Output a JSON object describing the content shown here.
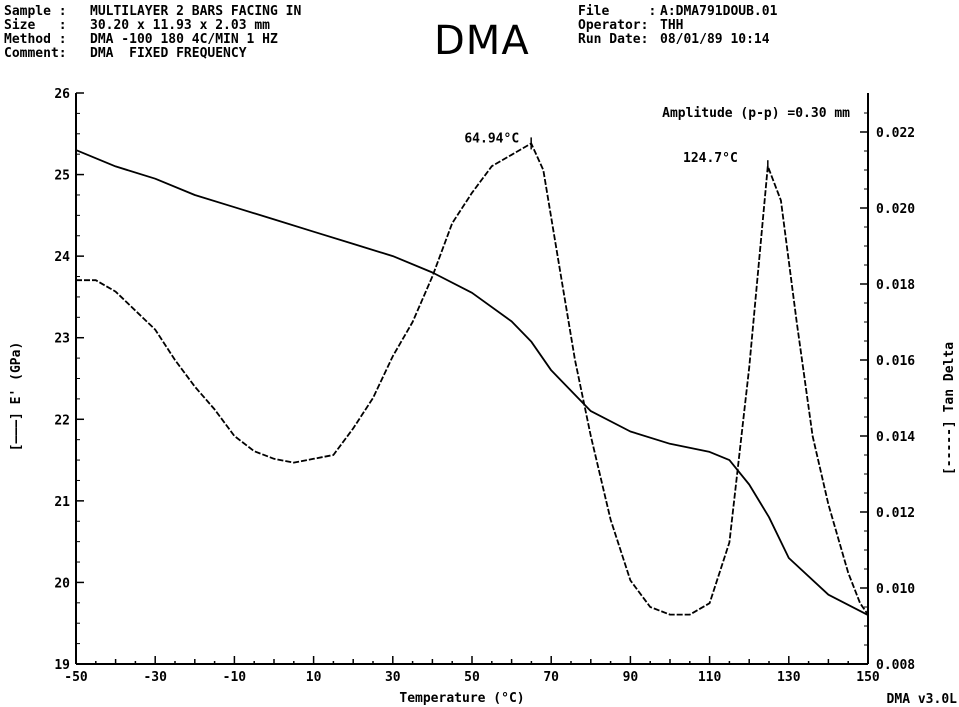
{
  "header": {
    "title": "DMA",
    "left": [
      {
        "key": "Sample :",
        "value": "MULTILAYER 2 BARS FACING IN"
      },
      {
        "key": "Size   :",
        "value": "30.20 x 11.93 x 2.03 mm"
      },
      {
        "key": "Method :",
        "value": "DMA -100 180 4C/MIN 1 HZ"
      },
      {
        "key": "Comment:",
        "value": "DMA  FIXED FREQUENCY"
      }
    ],
    "right": [
      {
        "key": "File     :",
        "value": "A:DMA791DOUB.01"
      },
      {
        "key": "Operator:",
        "value": "THH"
      },
      {
        "key": "Run Date:",
        "value": "08/01/89 10:14"
      }
    ]
  },
  "footer": {
    "version": "DMA v3.0L"
  },
  "chart_data": {
    "type": "line",
    "xlabel": "Temperature (°C)",
    "ylabel_left": "[———] E' (GPa)",
    "ylabel_right": "[-----] Tan Delta",
    "xlim": [
      -50,
      150
    ],
    "ylim_left": [
      19,
      26
    ],
    "ylim_right": [
      0.008,
      0.023
    ],
    "x_ticks": [
      -50,
      -30,
      -10,
      10,
      30,
      50,
      70,
      90,
      110,
      130,
      150
    ],
    "y_left_ticks": [
      19,
      20,
      21,
      22,
      23,
      24,
      25,
      26
    ],
    "y_right_ticks": [
      "0.008",
      "0.010",
      "0.012",
      "0.014",
      "0.016",
      "0.018",
      "0.020",
      "0.022"
    ],
    "annotations": [
      {
        "text": "Amplitude (p-p) =0.30 mm"
      },
      {
        "text": "64.94°C",
        "x": 64.94,
        "y_right": 0.0217
      },
      {
        "text": "124.7°C",
        "x": 124.7,
        "y_right": 0.0211
      }
    ],
    "series": [
      {
        "name": "E'",
        "axis": "left",
        "style": "solid",
        "x": [
          -50,
          -40,
          -30,
          -20,
          -10,
          0,
          10,
          20,
          30,
          40,
          50,
          60,
          65,
          70,
          80,
          90,
          100,
          110,
          115,
          120,
          125,
          130,
          140,
          150
        ],
        "y": [
          25.3,
          25.1,
          24.95,
          24.75,
          24.6,
          24.45,
          24.3,
          24.15,
          24.0,
          23.8,
          23.55,
          23.2,
          22.95,
          22.6,
          22.1,
          21.85,
          21.7,
          21.6,
          21.5,
          21.2,
          20.8,
          20.3,
          19.85,
          19.6
        ]
      },
      {
        "name": "Tan Delta",
        "axis": "right",
        "style": "dashed",
        "x": [
          -50,
          -45,
          -40,
          -35,
          -30,
          -25,
          -20,
          -15,
          -10,
          -5,
          0,
          5,
          10,
          15,
          20,
          25,
          30,
          35,
          40,
          45,
          50,
          55,
          60,
          64.94,
          68,
          72,
          76,
          80,
          85,
          90,
          95,
          100,
          105,
          110,
          115,
          120,
          124.7,
          128,
          132,
          136,
          140,
          145,
          148,
          150
        ],
        "y": [
          0.0181,
          0.0181,
          0.0178,
          0.0173,
          0.0168,
          0.016,
          0.0153,
          0.0147,
          0.014,
          0.0136,
          0.0134,
          0.0133,
          0.0134,
          0.0135,
          0.0142,
          0.015,
          0.0161,
          0.017,
          0.0182,
          0.0196,
          0.0204,
          0.0211,
          0.0214,
          0.0217,
          0.021,
          0.0185,
          0.016,
          0.014,
          0.0118,
          0.0102,
          0.0095,
          0.0093,
          0.0093,
          0.0096,
          0.0112,
          0.0158,
          0.0211,
          0.0202,
          0.017,
          0.014,
          0.0122,
          0.0104,
          0.0096,
          0.0093
        ]
      }
    ]
  }
}
